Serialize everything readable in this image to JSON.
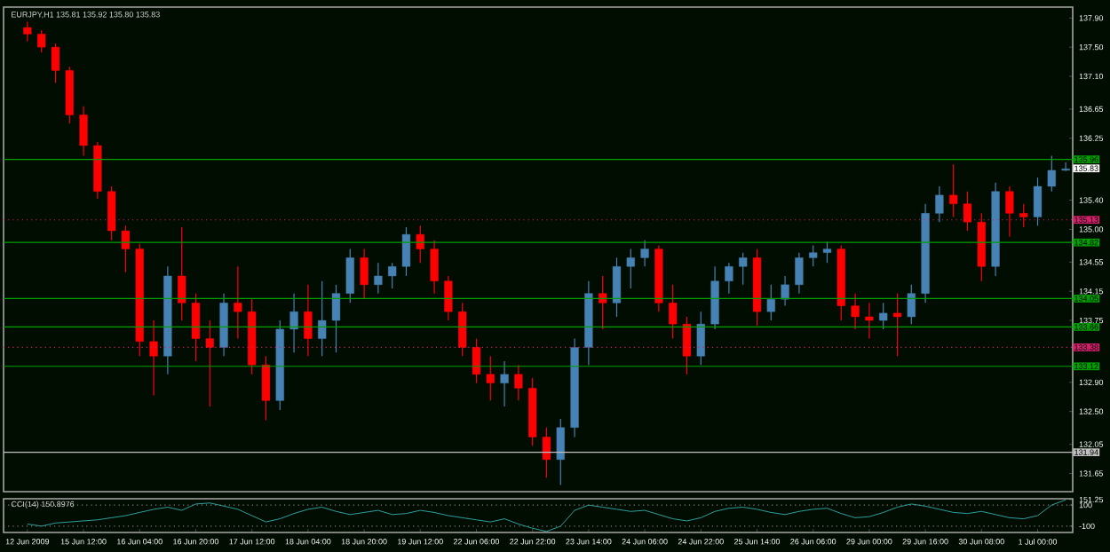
{
  "chart_data": [
    {
      "type": "candlestick",
      "title": "EURJPY,H1 135.81 135.92 135.80 135.83",
      "categories": [
        null,
        null,
        null,
        null,
        null,
        null,
        null,
        null,
        null,
        null,
        null,
        null,
        null,
        null,
        null,
        null,
        null,
        null,
        null,
        null,
        null,
        null,
        null,
        null,
        null,
        null,
        null,
        null,
        null,
        null,
        null,
        null,
        null,
        null,
        null,
        null,
        null,
        null,
        null,
        null,
        null,
        null,
        null,
        null,
        null,
        null,
        null,
        null,
        null,
        null,
        null,
        null,
        null,
        null,
        null,
        null,
        null,
        null,
        null,
        null,
        null,
        null,
        null,
        null,
        null,
        null,
        null,
        null,
        null,
        null,
        null,
        null,
        null,
        null,
        null
      ],
      "ohlc": [
        [
          137.77,
          137.85,
          137.58,
          137.68
        ],
        [
          137.68,
          137.73,
          137.43,
          137.5
        ],
        [
          137.5,
          137.55,
          137.01,
          137.18
        ],
        [
          137.18,
          137.23,
          136.45,
          136.57
        ],
        [
          136.57,
          136.69,
          136.01,
          136.15
        ],
        [
          136.15,
          136.2,
          135.42,
          135.52
        ],
        [
          135.52,
          135.59,
          134.85,
          134.98
        ],
        [
          134.98,
          135.05,
          134.41,
          134.73
        ],
        [
          134.73,
          134.8,
          133.26,
          133.46
        ],
        [
          133.46,
          133.75,
          132.72,
          133.26
        ],
        [
          133.26,
          134.49,
          133.01,
          134.36
        ],
        [
          134.36,
          135.03,
          133.75,
          133.99
        ],
        [
          133.99,
          134.12,
          133.19,
          133.5
        ],
        [
          133.5,
          133.75,
          132.57,
          133.38
        ],
        [
          133.38,
          134.12,
          133.26,
          133.99
        ],
        [
          133.99,
          134.49,
          133.5,
          133.87
        ],
        [
          133.87,
          134.04,
          133.01,
          133.14
        ],
        [
          133.14,
          133.26,
          132.38,
          132.65
        ],
        [
          132.65,
          133.75,
          132.52,
          133.63
        ],
        [
          133.63,
          134.12,
          133.31,
          133.87
        ],
        [
          133.87,
          134.24,
          133.26,
          133.5
        ],
        [
          133.5,
          134.29,
          133.26,
          133.75
        ],
        [
          133.75,
          134.24,
          133.31,
          134.12
        ],
        [
          134.12,
          134.73,
          133.99,
          134.61
        ],
        [
          134.61,
          134.73,
          134.04,
          134.24
        ],
        [
          134.24,
          134.54,
          134.12,
          134.36
        ],
        [
          134.36,
          134.54,
          134.19,
          134.49
        ],
        [
          134.49,
          135.03,
          134.36,
          134.93
        ],
        [
          134.93,
          135.05,
          134.54,
          134.73
        ],
        [
          134.73,
          134.85,
          134.12,
          134.29
        ],
        [
          134.29,
          134.36,
          133.75,
          133.87
        ],
        [
          133.87,
          133.99,
          133.26,
          133.38
        ],
        [
          133.38,
          133.5,
          132.89,
          133.01
        ],
        [
          133.01,
          133.26,
          132.65,
          132.89
        ],
        [
          132.89,
          133.19,
          132.57,
          133.01
        ],
        [
          133.01,
          133.14,
          132.65,
          132.82
        ],
        [
          132.82,
          132.96,
          132.03,
          132.15
        ],
        [
          132.15,
          132.28,
          131.59,
          131.84
        ],
        [
          131.84,
          132.4,
          131.49,
          132.28
        ],
        [
          132.28,
          133.5,
          132.15,
          133.38
        ],
        [
          133.38,
          134.29,
          133.14,
          134.12
        ],
        [
          134.12,
          134.36,
          133.63,
          133.99
        ],
        [
          133.99,
          134.61,
          133.8,
          134.49
        ],
        [
          134.49,
          134.73,
          134.19,
          134.61
        ],
        [
          134.61,
          134.85,
          134.49,
          134.73
        ],
        [
          134.73,
          134.78,
          133.87,
          133.99
        ],
        [
          133.99,
          134.24,
          133.5,
          133.7
        ],
        [
          133.7,
          133.8,
          133.01,
          133.26
        ],
        [
          133.26,
          133.87,
          133.14,
          133.7
        ],
        [
          133.7,
          134.49,
          133.63,
          134.29
        ],
        [
          134.29,
          134.54,
          134.12,
          134.49
        ],
        [
          134.49,
          134.68,
          134.24,
          134.61
        ],
        [
          134.61,
          134.73,
          133.68,
          133.87
        ],
        [
          133.87,
          134.24,
          133.75,
          134.04
        ],
        [
          134.04,
          134.36,
          133.95,
          134.24
        ],
        [
          134.24,
          134.68,
          134.12,
          134.61
        ],
        [
          134.61,
          134.78,
          134.49,
          134.68
        ],
        [
          134.68,
          134.83,
          134.54,
          134.73
        ],
        [
          134.73,
          134.78,
          133.75,
          133.95
        ],
        [
          133.95,
          134.12,
          133.63,
          133.8
        ],
        [
          133.8,
          133.99,
          133.5,
          133.75
        ],
        [
          133.75,
          133.99,
          133.63,
          133.85
        ],
        [
          133.85,
          134.12,
          133.26,
          133.8
        ],
        [
          133.8,
          134.24,
          133.7,
          134.12
        ],
        [
          134.12,
          135.35,
          133.99,
          135.22
        ],
        [
          135.22,
          135.59,
          135.1,
          135.47
        ],
        [
          135.47,
          135.89,
          135.17,
          135.35
        ],
        [
          135.35,
          135.52,
          134.98,
          135.1
        ],
        [
          135.1,
          135.22,
          134.29,
          134.49
        ],
        [
          134.49,
          135.64,
          134.36,
          135.52
        ],
        [
          135.52,
          135.59,
          134.9,
          135.22
        ],
        [
          135.22,
          135.35,
          135.03,
          135.17
        ],
        [
          135.17,
          135.71,
          135.05,
          135.59
        ],
        [
          135.59,
          136.01,
          135.52,
          135.81
        ],
        [
          135.81,
          135.92,
          135.8,
          135.83
        ]
      ],
      "colors": [
        "#ff0000",
        "#ff0000",
        "#ff0000",
        "#ff0000",
        "#ff0000",
        "#ff0000",
        "#ff0000",
        "#ff0000",
        "#ff0000",
        "#ff0000",
        "#4682b4",
        "#ff0000",
        "#ff0000",
        "#ff0000",
        "#4682b4",
        "#ff0000",
        "#ff0000",
        "#ff0000",
        "#4682b4",
        "#4682b4",
        "#ff0000",
        "#4682b4",
        "#4682b4",
        "#4682b4",
        "#ff0000",
        "#4682b4",
        "#4682b4",
        "#4682b4",
        "#ff0000",
        "#ff0000",
        "#ff0000",
        "#ff0000",
        "#ff0000",
        "#ff0000",
        "#4682b4",
        "#ff0000",
        "#ff0000",
        "#ff0000",
        "#4682b4",
        "#4682b4",
        "#4682b4",
        "#ff0000",
        "#4682b4",
        "#4682b4",
        "#4682b4",
        "#ff0000",
        "#ff0000",
        "#ff0000",
        "#4682b4",
        "#4682b4",
        "#4682b4",
        "#4682b4",
        "#ff0000",
        "#4682b4",
        "#4682b4",
        "#4682b4",
        "#4682b4",
        "#4682b4",
        "#ff0000",
        "#ff0000",
        "#ff0000",
        "#4682b4",
        "#ff0000",
        "#4682b4",
        "#4682b4",
        "#4682b4",
        "#ff0000",
        "#ff0000",
        "#ff0000",
        "#4682b4",
        "#ff0000",
        "#ff0000",
        "#4682b4",
        "#4682b4",
        "#4682b4"
      ],
      "ylim": [
        131.4,
        138.05
      ],
      "yticks": [
        {
          "value": 137.9,
          "label": "137.90"
        },
        {
          "value": 137.5,
          "label": "137.50"
        },
        {
          "value": 137.1,
          "label": "137.10"
        },
        {
          "value": 136.65,
          "label": "136.65"
        },
        {
          "value": 136.25,
          "label": "136.25"
        },
        {
          "value": 135.4,
          "label": "135.40"
        },
        {
          "value": 135.0,
          "label": "135.00"
        },
        {
          "value": 134.55,
          "label": "134.55"
        },
        {
          "value": 134.15,
          "label": "134.15"
        },
        {
          "value": 133.75,
          "label": "133.75"
        },
        {
          "value": 132.9,
          "label": "132.90"
        },
        {
          "value": 132.5,
          "label": "132.50"
        },
        {
          "value": 132.05,
          "label": "132.05"
        },
        {
          "value": 131.65,
          "label": "131.65"
        }
      ],
      "ref_lines": [
        {
          "axis": "y",
          "value": 135.96,
          "label": "135.96",
          "color": "#00a000",
          "line_style": "solid"
        },
        {
          "axis": "y",
          "value": 135.13,
          "label": "135.13",
          "color": "#d0206a",
          "line_style": "dotted"
        },
        {
          "axis": "y",
          "value": 134.82,
          "label": "134.82",
          "color": "#00a000",
          "line_style": "solid"
        },
        {
          "axis": "y",
          "value": 134.05,
          "label": "134.05",
          "color": "#00a000",
          "line_style": "solid"
        },
        {
          "axis": "y",
          "value": 133.66,
          "label": "133.66",
          "color": "#00a000",
          "line_style": "solid"
        },
        {
          "axis": "y",
          "value": 133.38,
          "label": "133.38",
          "color": "#d0206a",
          "line_style": "dotted"
        },
        {
          "axis": "y",
          "value": 133.12,
          "label": "133.12",
          "color": "#00a000",
          "line_style": "solid"
        },
        {
          "axis": "y",
          "value": 131.94,
          "label": "131.94",
          "color": "#c0c0c0",
          "line_style": "solid"
        }
      ],
      "annotations": [
        "135.83"
      ],
      "tick_labels": "y"
    },
    {
      "type": "line",
      "title": "CCI(14) 150.8976",
      "categories": [
        "12 Jun 2009",
        null,
        null,
        null,
        "15 Jun 12:00",
        null,
        null,
        null,
        "16 Jun 04:00",
        null,
        null,
        null,
        "16 Jun 20:00",
        null,
        null,
        null,
        "17 Jun 12:00",
        null,
        null,
        null,
        "18 Jun 04:00",
        null,
        null,
        null,
        "18 Jun 20:00",
        null,
        null,
        null,
        "19 Jun 12:00",
        null,
        null,
        null,
        "22 Jun 06:00",
        null,
        null,
        null,
        "22 Jun 22:00",
        null,
        null,
        null,
        "23 Jun 14:00",
        null,
        null,
        null,
        "24 Jun 06:00",
        null,
        null,
        null,
        "24 Jun 22:00",
        null,
        null,
        null,
        "25 Jun 14:00",
        null,
        null,
        null,
        "26 Jun 06:00",
        null,
        null,
        null,
        "29 Jun 00:00",
        null,
        null,
        null,
        "29 Jun 16:00",
        null,
        null,
        null,
        "30 Jun 08:00",
        null,
        null,
        null,
        "1 Jul 00:00",
        null,
        null
      ],
      "series": [
        {
          "color": "#2f9e9e",
          "values": [
            -80,
            -100,
            -70,
            -60,
            -50,
            -40,
            -20,
            0,
            30,
            60,
            80,
            50,
            110,
            120,
            90,
            60,
            0,
            -60,
            -30,
            20,
            60,
            80,
            40,
            10,
            30,
            50,
            10,
            20,
            50,
            30,
            0,
            -20,
            -40,
            -60,
            -30,
            -80,
            -120,
            -150,
            -100,
            50,
            100,
            80,
            60,
            40,
            50,
            10,
            -30,
            -50,
            -20,
            40,
            70,
            80,
            60,
            30,
            10,
            40,
            60,
            70,
            20,
            -20,
            -10,
            30,
            80,
            110,
            90,
            60,
            30,
            20,
            40,
            10,
            -20,
            -30,
            0,
            100,
            150
          ]
        }
      ],
      "ylim": [
        -160,
        160
      ],
      "yticks": [
        151.25,
        100,
        -100
      ],
      "ref_lines": [
        {
          "axis": "y",
          "value": 100,
          "color": "#808080",
          "line_style": "dotted"
        },
        {
          "axis": "y",
          "value": -100,
          "color": "#808080",
          "line_style": "dotted"
        }
      ]
    }
  ]
}
